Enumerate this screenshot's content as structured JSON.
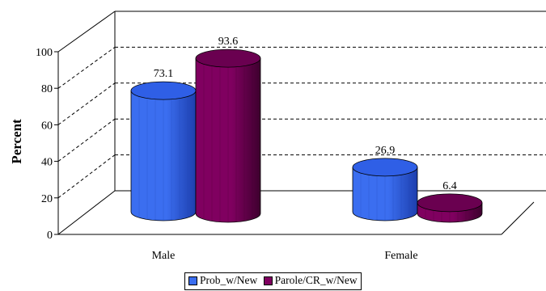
{
  "chart_data": {
    "type": "bar",
    "categories": [
      "Male",
      "Female"
    ],
    "series": [
      {
        "name": "Prob_w/New",
        "values": [
          73.1,
          26.9
        ],
        "color": "#3b6ef0",
        "dark": "#1d3fae",
        "top": "#2f5fe6"
      },
      {
        "name": "Parole/CR_w/New",
        "values": [
          93.6,
          6.4
        ],
        "color": "#800060",
        "dark": "#3e002e",
        "top": "#6a0050"
      }
    ],
    "data_labels": [
      "73.1",
      "93.6",
      "26.9",
      "6.4"
    ],
    "ylabel": "Percent",
    "ylim": [
      0,
      100
    ],
    "yticks": [
      "0",
      "20",
      "40",
      "60",
      "80",
      "100"
    ],
    "grid": true,
    "legend_position": "bottom"
  }
}
